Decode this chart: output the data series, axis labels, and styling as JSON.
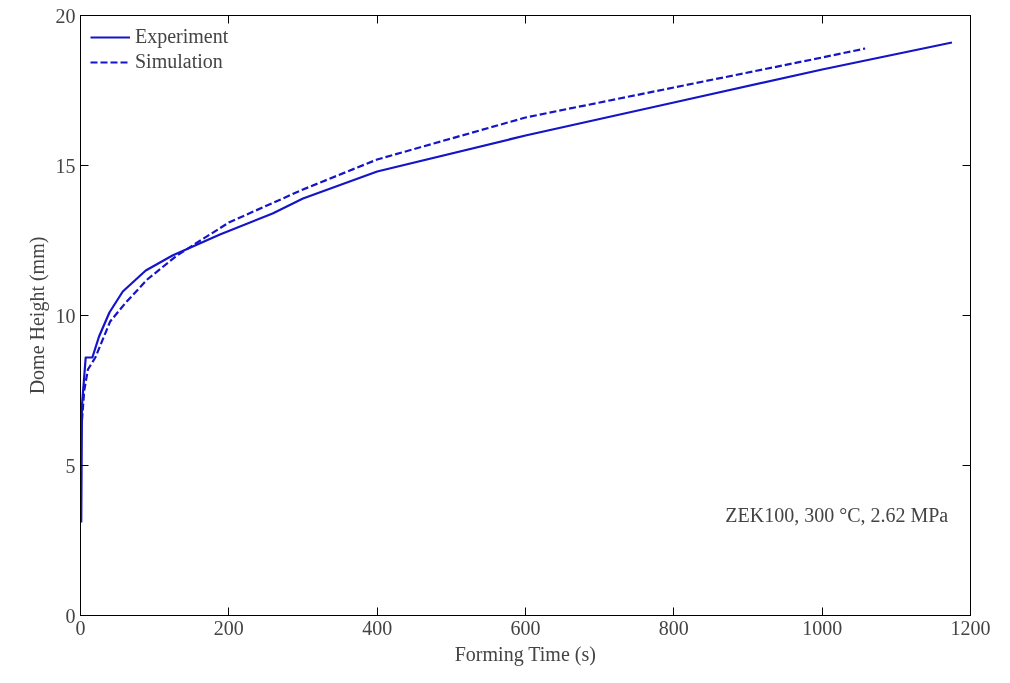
{
  "chart_data": {
    "type": "line",
    "xlabel": "Forming Time (s)",
    "ylabel": "Dome Height (mm)",
    "xlim": [
      0,
      1200
    ],
    "ylim": [
      0,
      20
    ],
    "xticks": [
      0,
      200,
      400,
      600,
      800,
      1000,
      1200
    ],
    "yticks": [
      0,
      5,
      10,
      15,
      20
    ],
    "grid": false,
    "legend": "top left",
    "marker": "none",
    "annotations": [
      "ZEK100, 300 °C, 2.62 MPa"
    ],
    "series": [
      {
        "name": "Experiment",
        "color": "#1414c8",
        "line_style": "solid",
        "x": [
          1,
          2,
          7,
          16,
          25,
          39,
          57,
          88,
          124,
          188,
          259,
          300,
          400,
          600,
          800,
          1000,
          1175
        ],
        "values": [
          3.1,
          7.0,
          8.6,
          8.6,
          9.3,
          10.1,
          10.8,
          11.5,
          12.0,
          12.7,
          13.4,
          13.9,
          14.8,
          16.0,
          17.1,
          18.2,
          19.1
        ]
      },
      {
        "name": "Simulation",
        "color": "#1414c8",
        "line_style": "dashed",
        "x": [
          2,
          5,
          10,
          20,
          40,
          60,
          90,
          130,
          200,
          300,
          400,
          600,
          800,
          1000,
          1058
        ],
        "values": [
          6.5,
          7.5,
          8.2,
          8.6,
          9.8,
          10.4,
          11.2,
          12.0,
          13.1,
          14.2,
          15.2,
          16.6,
          17.6,
          18.6,
          18.9
        ]
      }
    ]
  }
}
